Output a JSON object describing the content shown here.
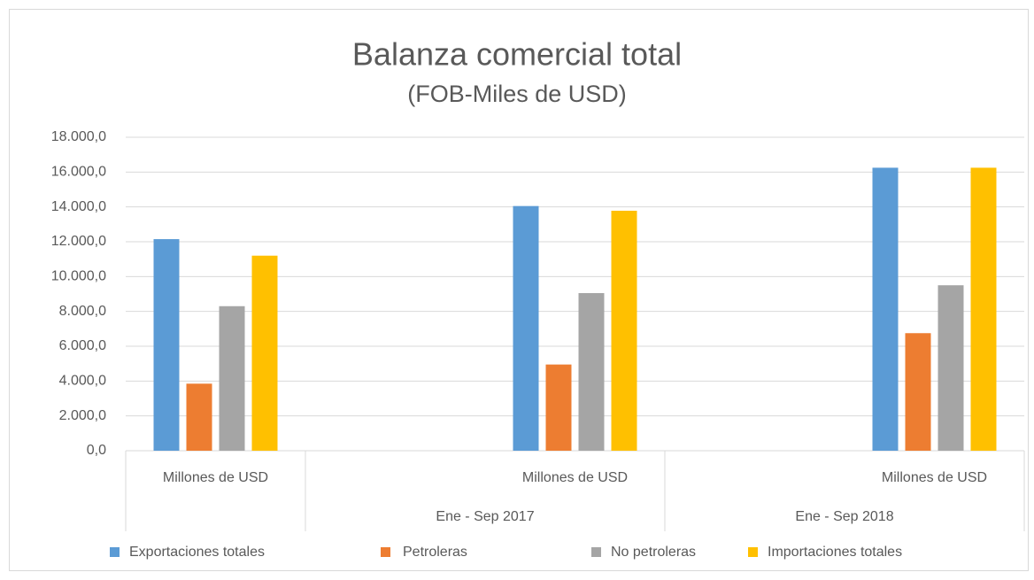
{
  "chart_data": {
    "type": "bar",
    "title": "Balanza comercial total",
    "subtitle": "(FOB-Miles de USD)",
    "categories": [
      "Millones de USD",
      null,
      "Millones de USD",
      null,
      "Millones de USD"
    ],
    "category_groups": [
      {
        "label": null,
        "size": 1
      },
      {
        "label": "Ene -  Sep  2017",
        "size": 2
      },
      {
        "label": "Ene -  Sep  2018",
        "size": 2
      }
    ],
    "series": [
      {
        "name": "Exportaciones totales",
        "color": "#5b9bd5",
        "values": [
          12150,
          null,
          14050,
          null,
          16250
        ]
      },
      {
        "name": "Petroleras",
        "color": "#ed7d31",
        "values": [
          3850,
          null,
          4950,
          null,
          6750
        ]
      },
      {
        "name": "No petroleras",
        "color": "#a5a5a5",
        "values": [
          8300,
          null,
          9050,
          null,
          9500
        ]
      },
      {
        "name": "Importaciones totales",
        "color": "#ffc000",
        "values": [
          11200,
          null,
          13780,
          null,
          16250
        ]
      }
    ],
    "ylim": [
      0,
      18000
    ],
    "yticks": [
      {
        "value": 0,
        "label": "0,0"
      },
      {
        "value": 2000,
        "label": "2.000,0"
      },
      {
        "value": 4000,
        "label": "4.000,0"
      },
      {
        "value": 6000,
        "label": "6.000,0"
      },
      {
        "value": 8000,
        "label": "8.000,0"
      },
      {
        "value": 10000,
        "label": "10.000,0"
      },
      {
        "value": 12000,
        "label": "12.000,0"
      },
      {
        "value": 14000,
        "label": "14.000,0"
      },
      {
        "value": 16000,
        "label": "16.000,0"
      },
      {
        "value": 18000,
        "label": "18.000,0"
      }
    ],
    "grid": true,
    "legend": "bottom"
  }
}
